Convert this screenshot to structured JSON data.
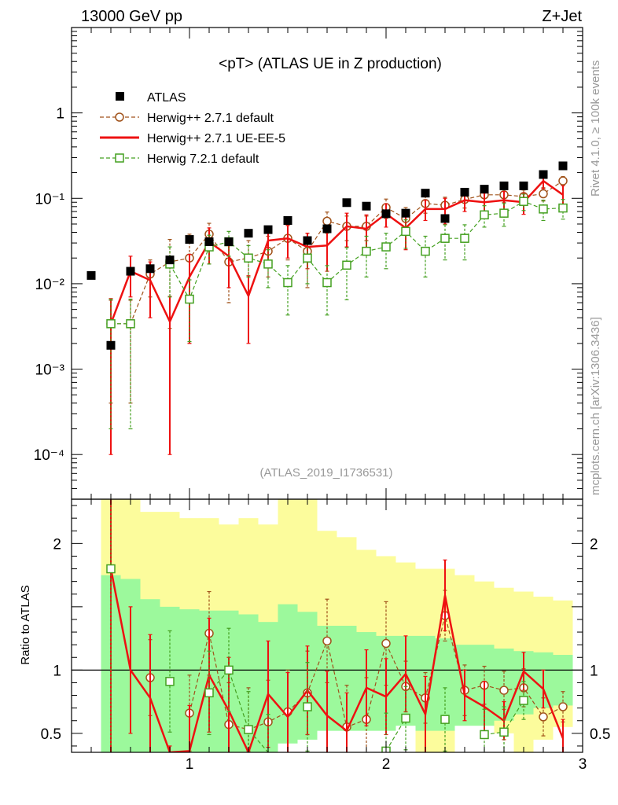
{
  "header": {
    "energy": "13000 GeV pp",
    "process": "Z+Jet",
    "rivet": "Rivet 4.1.0, ≥ 100k events",
    "mcplots": "mcplots.cern.ch [arXiv:1306.3436]"
  },
  "chart_data": {
    "type": "line",
    "title": "<pT> (ATLAS UE in Z production)",
    "analysis_tag": "(ATLAS_2019_I1736531)",
    "x_range": [
      0.4,
      3.0
    ],
    "x_ticks": [
      1,
      2,
      3
    ],
    "x_tick_labels": [
      "1",
      "2",
      "3"
    ],
    "main": {
      "yscale": "log",
      "y_range": [
        3e-05,
        10
      ],
      "y_ticks": [
        0.0001,
        0.001,
        0.01,
        0.1,
        1
      ],
      "y_tick_labels": [
        "10⁻⁴",
        "10⁻³",
        "10⁻²",
        "10⁻¹",
        "1"
      ]
    },
    "ratio": {
      "ylabel": "Ratio to ATLAS",
      "y_range": [
        0.35,
        2.35
      ],
      "y_ticks": [
        0.5,
        1,
        2
      ],
      "y_tick_labels": [
        "0.5",
        "1",
        "2"
      ],
      "reference_line": 1
    },
    "legend": {
      "position": "top-left",
      "entries": [
        "ATLAS",
        "Herwig++ 2.7.1 default",
        "Herwig++ 2.7.1 UE-EE-5",
        "Herwig 7.2.1 default"
      ]
    },
    "x": [
      0.5,
      0.6,
      0.7,
      0.8,
      0.9,
      1.0,
      1.1,
      1.2,
      1.3,
      1.4,
      1.5,
      1.6,
      1.7,
      1.8,
      1.9,
      2.0,
      2.1,
      2.2,
      2.3,
      2.4,
      2.5,
      2.6,
      2.7,
      2.8,
      2.9
    ],
    "series": [
      {
        "name": "ATLAS",
        "style": "markers",
        "color": "#000000",
        "values": [
          0.0125,
          0.0019,
          0.014,
          0.015,
          0.019,
          0.033,
          0.031,
          0.031,
          0.039,
          0.043,
          0.055,
          0.032,
          0.044,
          0.089,
          0.081,
          0.066,
          0.067,
          0.115,
          0.058,
          0.118,
          0.128,
          0.14,
          0.14,
          0.19,
          0.24
        ]
      },
      {
        "name": "Herwig++ 2.7.1 default",
        "style": "dashed-circles",
        "color": "#a0521a",
        "values": [
          null,
          0.0034,
          0.0034,
          0.013,
          0.018,
          0.02,
          0.038,
          0.018,
          0.02,
          0.024,
          0.034,
          0.024,
          0.054,
          0.047,
          0.047,
          0.078,
          0.058,
          0.087,
          0.083,
          0.097,
          0.11,
          0.11,
          0.105,
          0.113,
          0.16
        ],
        "errors": [
          null,
          0.003,
          0.003,
          0.006,
          0.015,
          0.018,
          0.013,
          0.012,
          0.012,
          0.012,
          0.015,
          0.015,
          0.015,
          0.015,
          0.015,
          0.02,
          0.02,
          0.02,
          0.02,
          0.02,
          0.02,
          0.02,
          0.02,
          0.02,
          0.02
        ],
        "ratio": [
          null,
          null,
          null,
          0.94,
          null,
          0.66,
          1.29,
          0.57,
          0.53,
          0.59,
          0.67,
          0.82,
          1.23,
          0.55,
          0.61,
          1.21,
          0.87,
          0.78,
          1.43,
          0.84,
          0.88,
          0.84,
          0.86,
          0.63,
          0.71
        ],
        "ratio_errors": [
          null,
          null,
          null,
          0.3,
          null,
          0.3,
          0.33,
          0.33,
          0.33,
          0.33,
          0.33,
          0.33,
          0.33,
          0.33,
          0.33,
          0.33,
          0.2,
          0.2,
          0.2,
          0.2,
          0.15,
          0.15,
          0.15,
          0.15,
          0.12
        ]
      },
      {
        "name": "Herwig++ 2.7.1 UE-EE-5",
        "style": "solid",
        "color": "#ee1111",
        "values": [
          null,
          0.0034,
          0.014,
          0.011,
          0.0036,
          0.012,
          0.031,
          0.021,
          0.0072,
          0.032,
          0.034,
          0.027,
          0.028,
          0.047,
          0.044,
          0.066,
          0.045,
          0.075,
          0.075,
          0.095,
          0.09,
          0.095,
          0.09,
          0.16,
          0.11
        ],
        "errors": [
          null,
          0.0033,
          0.007,
          0.007,
          0.0035,
          0.01,
          0.014,
          0.012,
          0.0052,
          0.014,
          0.014,
          0.012,
          0.014,
          0.02,
          0.02,
          0.02,
          0.02,
          0.02,
          0.025,
          0.025,
          0.025,
          0.025,
          0.025,
          0.03,
          0.03
        ],
        "ratio": [
          null,
          1.8,
          1.0,
          0.78,
          0.2,
          0.36,
          0.96,
          0.68,
          0.18,
          0.81,
          0.63,
          0.84,
          0.64,
          0.52,
          0.86,
          0.79,
          0.97,
          0.65,
          1.59,
          0.8,
          0.71,
          0.6,
          0.99,
          0.85,
          0.46
        ],
        "ratio_errors": [
          null,
          1.8,
          0.5,
          0.5,
          0.2,
          0.36,
          0.45,
          0.42,
          0.18,
          0.42,
          0.35,
          0.35,
          0.35,
          0.3,
          0.3,
          0.3,
          0.3,
          0.3,
          0.28,
          0.2,
          0.2,
          0.15,
          0.15,
          0.15,
          0.15
        ]
      },
      {
        "name": "Herwig 7.2.1 default",
        "style": "dashed-squares",
        "color": "#44a020",
        "values": [
          null,
          0.0034,
          0.0034,
          null,
          0.017,
          0.0066,
          0.027,
          0.031,
          0.02,
          0.017,
          0.0103,
          0.02,
          0.0103,
          0.0165,
          0.024,
          0.027,
          0.041,
          0.024,
          0.034,
          0.034,
          0.064,
          0.067,
          0.092,
          0.075,
          0.077
        ],
        "errors": [
          null,
          0.0032,
          0.0032,
          null,
          0.01,
          0.0045,
          0.01,
          0.01,
          0.008,
          0.008,
          0.006,
          0.01,
          0.006,
          0.01,
          0.012,
          0.012,
          0.015,
          0.012,
          0.015,
          0.015,
          0.018,
          0.02,
          0.02,
          0.02,
          0.02
        ],
        "ratio": [
          null,
          1.8,
          null,
          null,
          0.91,
          null,
          0.82,
          1.0,
          0.53,
          0.35,
          null,
          0.71,
          null,
          null,
          null,
          0.36,
          0.62,
          null,
          0.61,
          null,
          0.49,
          0.51,
          0.76,
          null,
          null
        ],
        "ratio_errors": [
          null,
          1.8,
          null,
          null,
          0.4,
          null,
          0.33,
          0.33,
          0.3,
          0.3,
          null,
          0.35,
          null,
          null,
          null,
          0.3,
          0.25,
          null,
          0.25,
          null,
          0.2,
          0.2,
          0.15,
          null,
          null
        ]
      }
    ],
    "uncertainty_bands": {
      "inner_color": "#9cf99c",
      "outer_color": "#fcfc9c",
      "inner_up": [
        null,
        1.75,
        1.72,
        1.56,
        1.5,
        1.48,
        1.47,
        1.47,
        1.44,
        1.38,
        1.52,
        1.46,
        1.35,
        1.35,
        1.3,
        1.27,
        1.27,
        1.27,
        1.25,
        1.2,
        1.2,
        1.17,
        1.15,
        1.14,
        1.12
      ],
      "inner_down": [
        null,
        0.35,
        0.35,
        0.35,
        0.35,
        0.35,
        0.35,
        0.35,
        0.35,
        0.35,
        0.42,
        0.45,
        0.52,
        0.52,
        0.52,
        0.52,
        0.56,
        0.52,
        0.52,
        0.56,
        0.56,
        0.6,
        0.65,
        0.7,
        0.72
      ],
      "outer_up": [
        null,
        2.35,
        2.35,
        2.25,
        2.25,
        2.2,
        2.2,
        2.15,
        2.2,
        2.15,
        2.35,
        2.35,
        2.1,
        2.05,
        1.95,
        1.9,
        1.85,
        1.8,
        1.8,
        1.75,
        1.7,
        1.65,
        1.62,
        1.58,
        1.55
      ],
      "outer_down": [
        null,
        0.35,
        0.35,
        0.35,
        0.35,
        0.35,
        0.55,
        0.55,
        0.55,
        0.55,
        0.55,
        0.55,
        0.6,
        0.58,
        0.58,
        0.6,
        0.65,
        0.35,
        0.35,
        0.8,
        0.72,
        0.5,
        0.35,
        0.45,
        0.55
      ]
    }
  }
}
